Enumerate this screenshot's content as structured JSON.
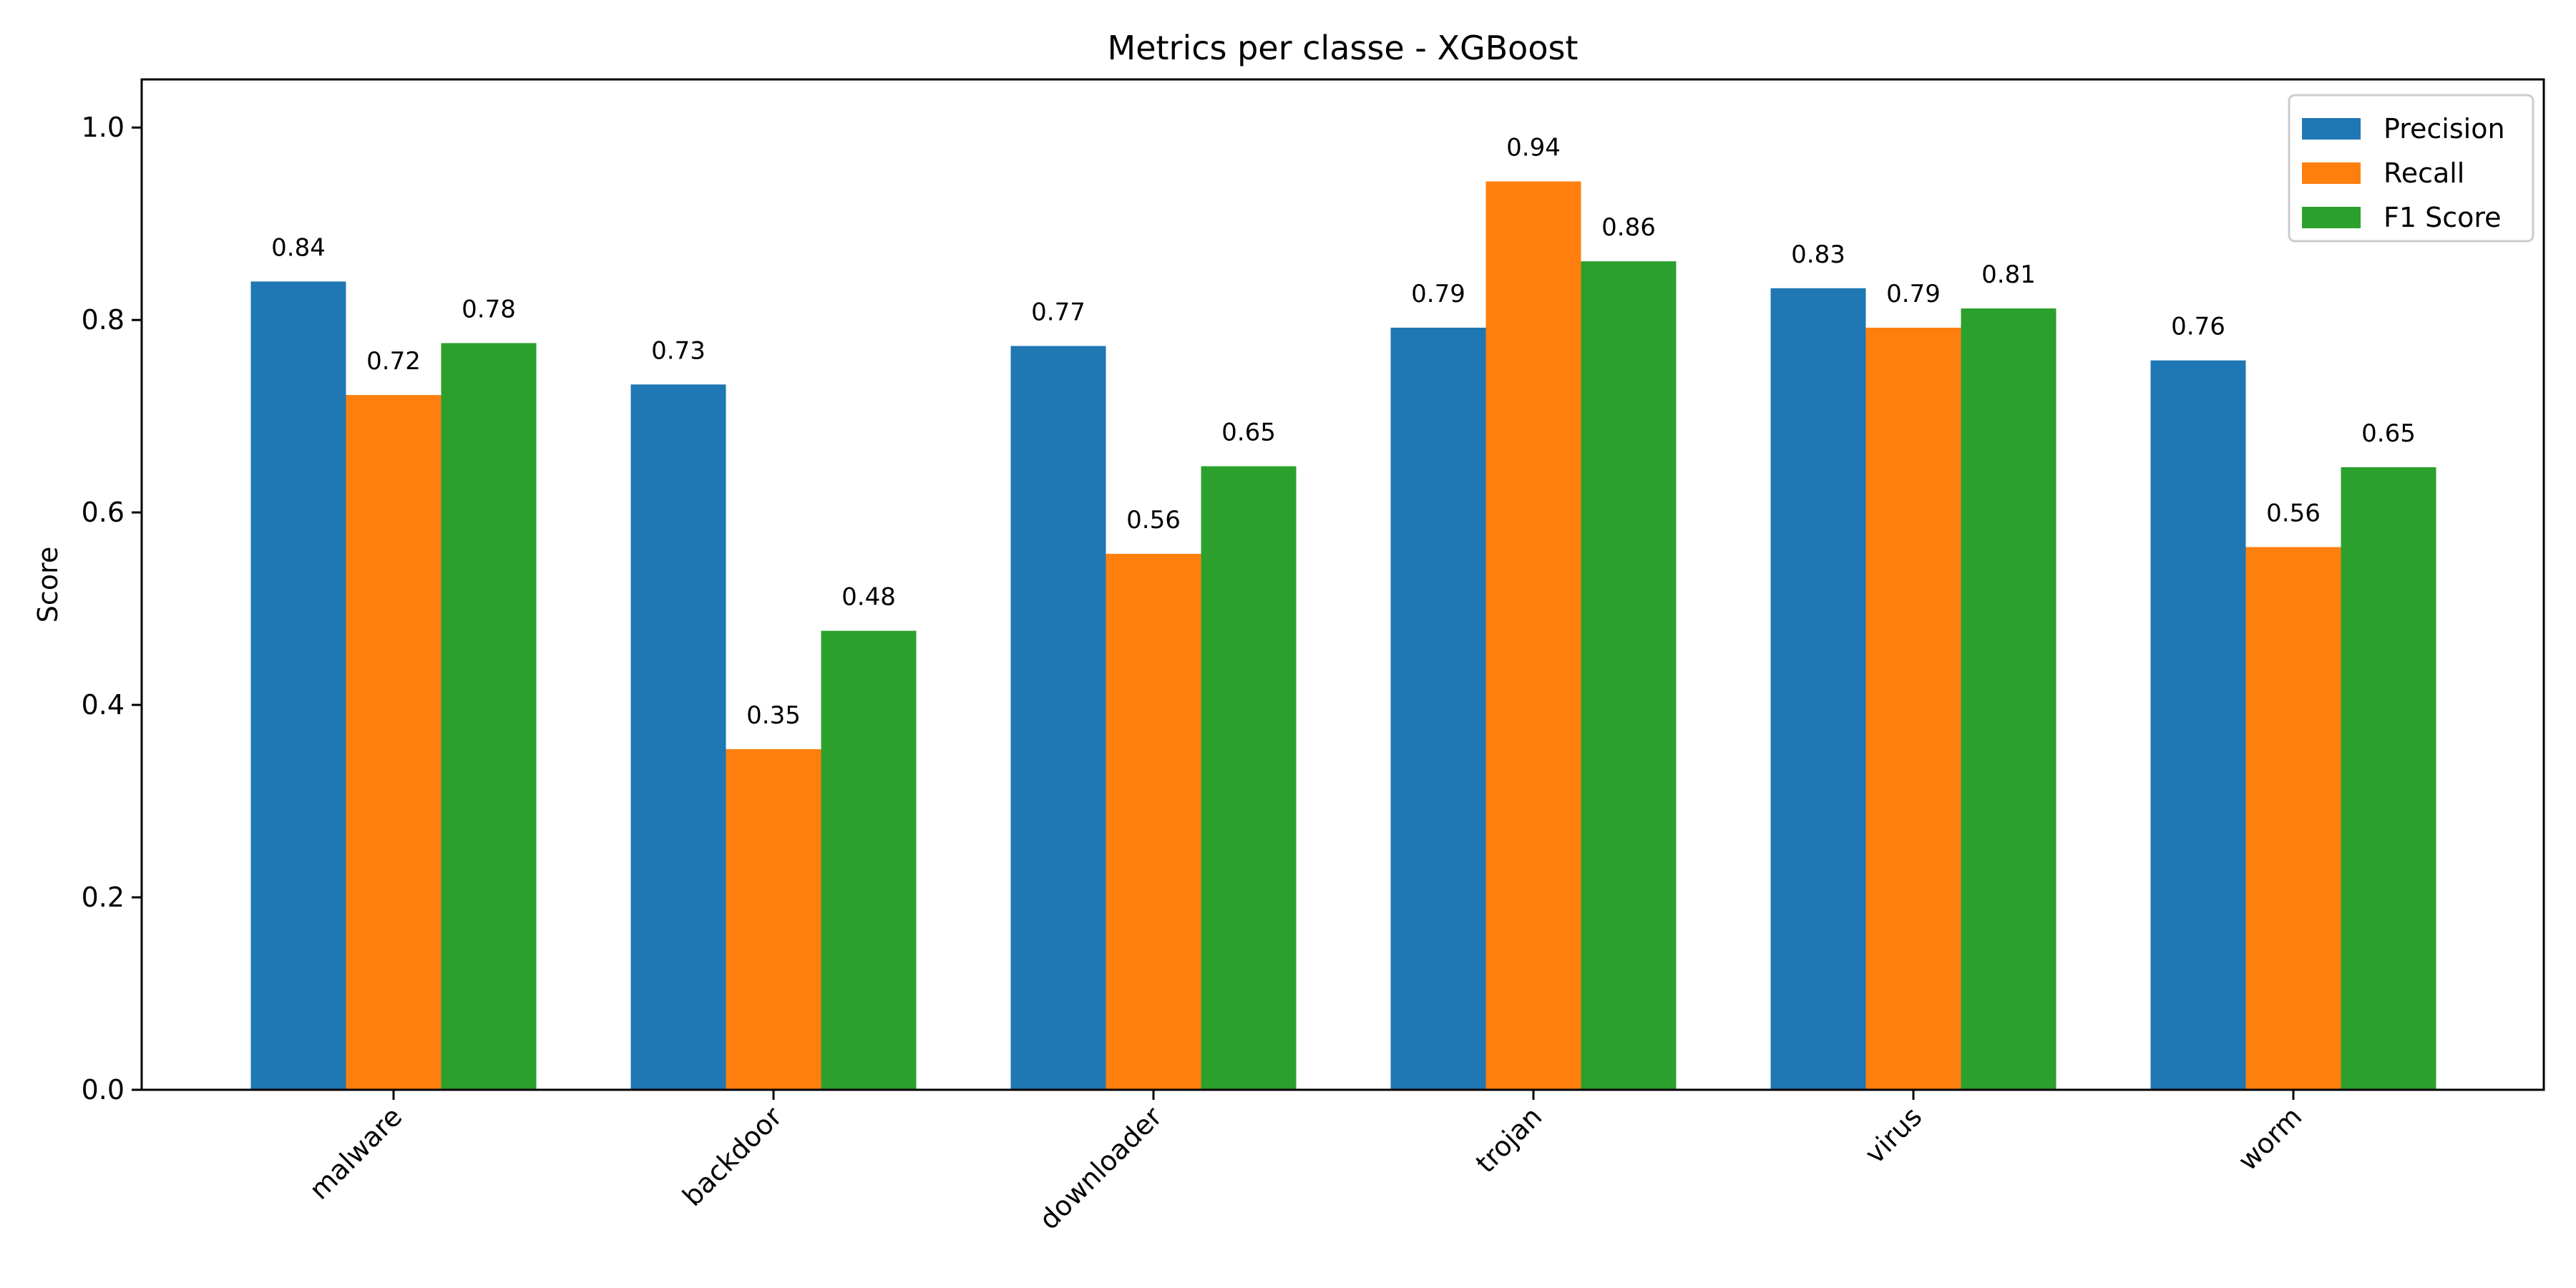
{
  "chart_data": {
    "type": "bar",
    "title": "Metrics per classe - XGBoost",
    "xlabel": "",
    "ylabel": "Score",
    "ylim": [
      0,
      1.05
    ],
    "yticks": [
      "0.0",
      "0.2",
      "0.4",
      "0.6",
      "0.8",
      "1.0"
    ],
    "grid": false,
    "legend_position": "top-right",
    "categories": [
      "malware",
      "backdoor",
      "downloader",
      "trojan",
      "virus",
      "worm"
    ],
    "series": [
      {
        "name": "Precision",
        "color": "#1f77b4",
        "values": [
          0.84,
          0.733,
          0.773,
          0.792,
          0.833,
          0.758
        ],
        "labels": [
          "0.84",
          "0.73",
          "0.77",
          "0.79",
          "0.83",
          "0.76"
        ]
      },
      {
        "name": "Recall",
        "color": "#ff7f0e",
        "values": [
          0.722,
          0.354,
          0.557,
          0.944,
          0.792,
          0.564
        ],
        "labels": [
          "0.72",
          "0.35",
          "0.56",
          "0.94",
          "0.79",
          "0.56"
        ]
      },
      {
        "name": "F1 Score",
        "color": "#2ca02c",
        "values": [
          0.776,
          0.477,
          0.648,
          0.861,
          0.812,
          0.647
        ],
        "labels": [
          "0.78",
          "0.48",
          "0.65",
          "0.86",
          "0.81",
          "0.65"
        ]
      }
    ]
  }
}
